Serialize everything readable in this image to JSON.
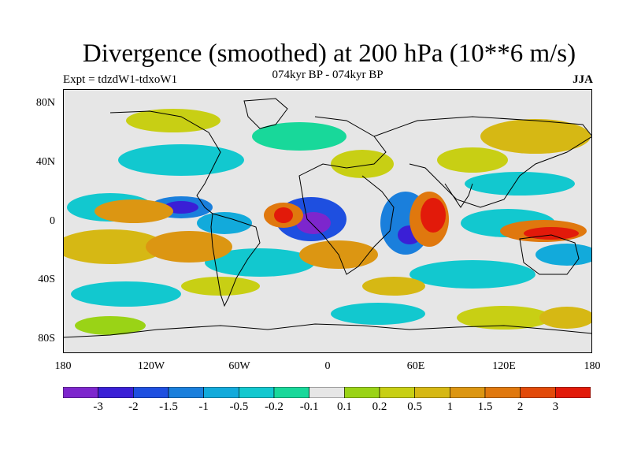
{
  "title": "Divergence (smoothed) at 200 hPa (10**6 m/s)",
  "subtitle": "074kyr BP - 074kyr BP",
  "expt_label": "Expt = tdzdW1-tdxoW1",
  "season": "JJA",
  "y_ticks": [
    "80N",
    "40N",
    "0",
    "40S",
    "80S"
  ],
  "x_ticks": [
    "180",
    "120W",
    "60W",
    "0",
    "60E",
    "120E",
    "180"
  ],
  "colorbar": {
    "colors": [
      "#7d26cd",
      "#3a1fd6",
      "#1e4fe0",
      "#1a7fdc",
      "#12aadb",
      "#12c8cf",
      "#18d89a",
      "#e6e6e6",
      "#9ad316",
      "#c8cf14",
      "#d6b814",
      "#dc9612",
      "#e0780e",
      "#e24a0a",
      "#e21a0a"
    ],
    "labels": [
      "-3",
      "-2",
      "-1.5",
      "-1",
      "-0.5",
      "-0.2",
      "-0.1",
      "0.1",
      "0.2",
      "0.5",
      "1",
      "1.5",
      "2",
      "3"
    ]
  },
  "map_colors": {
    "neutral": "#e6e6e6",
    "coast": "#000000"
  }
}
